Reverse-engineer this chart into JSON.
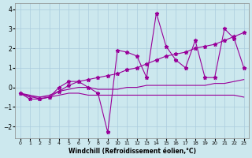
{
  "xlabel": "Windchill (Refroidissement éolien,°C)",
  "bg_color": "#cce8ee",
  "line_color": "#990099",
  "xlim": [
    -0.5,
    23.5
  ],
  "ylim": [
    -2.6,
    4.3
  ],
  "xticks": [
    0,
    1,
    2,
    3,
    4,
    5,
    6,
    7,
    8,
    9,
    10,
    11,
    12,
    13,
    14,
    15,
    16,
    17,
    18,
    19,
    20,
    21,
    22,
    23
  ],
  "yticks": [
    -2,
    -1,
    0,
    1,
    2,
    3,
    4
  ],
  "series": [
    {
      "has_markers": false,
      "x": [
        0,
        1,
        2,
        3,
        4,
        5,
        6,
        7,
        8,
        9,
        10,
        11,
        12,
        13,
        14,
        15,
        16,
        17,
        18,
        19,
        20,
        21,
        22,
        23
      ],
      "y": [
        -0.3,
        -0.4,
        -0.5,
        -0.5,
        -0.4,
        -0.3,
        -0.3,
        -0.4,
        -0.4,
        -0.4,
        -0.4,
        -0.4,
        -0.4,
        -0.4,
        -0.4,
        -0.4,
        -0.4,
        -0.4,
        -0.4,
        -0.4,
        -0.4,
        -0.4,
        -0.4,
        -0.5
      ]
    },
    {
      "has_markers": false,
      "x": [
        0,
        1,
        2,
        3,
        4,
        5,
        6,
        7,
        8,
        9,
        10,
        11,
        12,
        13,
        14,
        15,
        16,
        17,
        18,
        19,
        20,
        21,
        22,
        23
      ],
      "y": [
        -0.3,
        -0.5,
        -0.5,
        -0.4,
        -0.2,
        -0.1,
        0.0,
        0.0,
        -0.1,
        -0.1,
        -0.1,
        0.0,
        0.0,
        0.1,
        0.1,
        0.1,
        0.1,
        0.1,
        0.1,
        0.1,
        0.2,
        0.2,
        0.3,
        0.4
      ]
    },
    {
      "has_markers": true,
      "x": [
        0,
        1,
        2,
        3,
        4,
        5,
        6,
        7,
        8,
        9,
        10,
        11,
        12,
        13,
        14,
        15,
        16,
        17,
        18,
        19,
        20,
        21,
        22,
        23
      ],
      "y": [
        -0.3,
        -0.6,
        -0.6,
        -0.5,
        0.0,
        0.3,
        0.3,
        0.0,
        -0.3,
        -2.3,
        1.9,
        1.8,
        1.6,
        0.5,
        3.8,
        2.1,
        1.4,
        1.0,
        2.4,
        0.5,
        0.5,
        3.0,
        2.5,
        1.0
      ]
    },
    {
      "has_markers": true,
      "x": [
        0,
        2,
        3,
        4,
        5,
        6,
        7,
        8,
        9,
        10,
        11,
        12,
        13,
        14,
        15,
        16,
        17,
        18,
        19,
        20,
        21,
        22,
        23
      ],
      "y": [
        -0.3,
        -0.6,
        -0.5,
        -0.2,
        0.1,
        0.3,
        0.4,
        0.5,
        0.6,
        0.7,
        0.9,
        1.0,
        1.2,
        1.4,
        1.6,
        1.7,
        1.8,
        2.0,
        2.1,
        2.2,
        2.4,
        2.6,
        2.8
      ]
    }
  ]
}
